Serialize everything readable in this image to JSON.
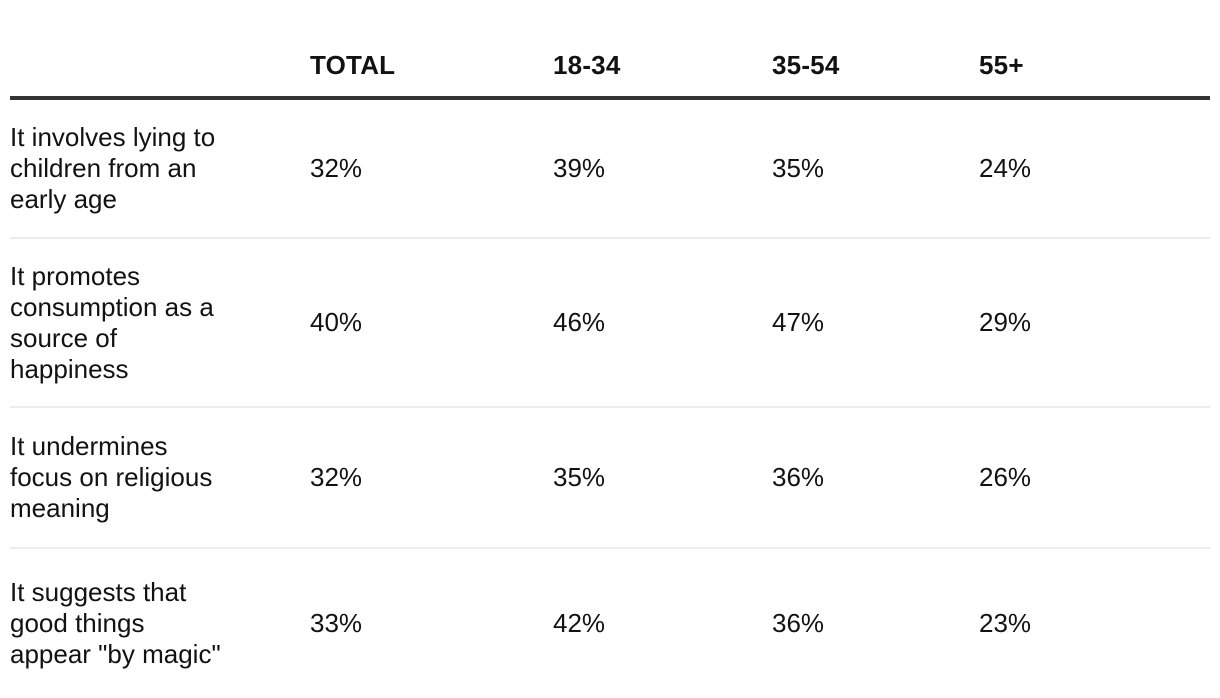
{
  "table": {
    "columns": [
      "TOTAL",
      "18-34",
      "35-54",
      "55+"
    ],
    "rows": [
      {
        "label": "It involves lying to\nchildren from an\nearly age",
        "values": [
          "32%",
          "39%",
          "35%",
          "24%"
        ]
      },
      {
        "label": "It promotes\nconsumption as a\nsource of\nhappiness",
        "values": [
          "40%",
          "46%",
          "47%",
          "29%"
        ]
      },
      {
        "label": "It undermines\nfocus on religious\nmeaning",
        "values": [
          "32%",
          "35%",
          "36%",
          "26%"
        ]
      },
      {
        "label": "It suggests that\ngood things\nappear \"by magic\"",
        "values": [
          "33%",
          "42%",
          "36%",
          "23%"
        ]
      }
    ],
    "colors": {
      "text": "#121212",
      "header_rule": "#343434",
      "row_rule": "#ececec",
      "background": "#ffffff"
    }
  },
  "chart_data": {
    "type": "table",
    "title": "",
    "columns": [
      "TOTAL",
      "18-34",
      "35-54",
      "55+"
    ],
    "rows": [
      {
        "label": "It involves lying to children from an early age",
        "values": [
          32,
          39,
          35,
          24
        ]
      },
      {
        "label": "It promotes consumption as a source of happiness",
        "values": [
          40,
          46,
          47,
          29
        ]
      },
      {
        "label": "It undermines focus on religious meaning",
        "values": [
          32,
          35,
          36,
          26
        ]
      },
      {
        "label": "It suggests that good things appear \"by magic\"",
        "values": [
          33,
          42,
          36,
          23
        ]
      }
    ],
    "unit": "%",
    "layout": "row labels left-aligned; numeric columns left-aligned; thick rule under header; thin rules between rows"
  }
}
